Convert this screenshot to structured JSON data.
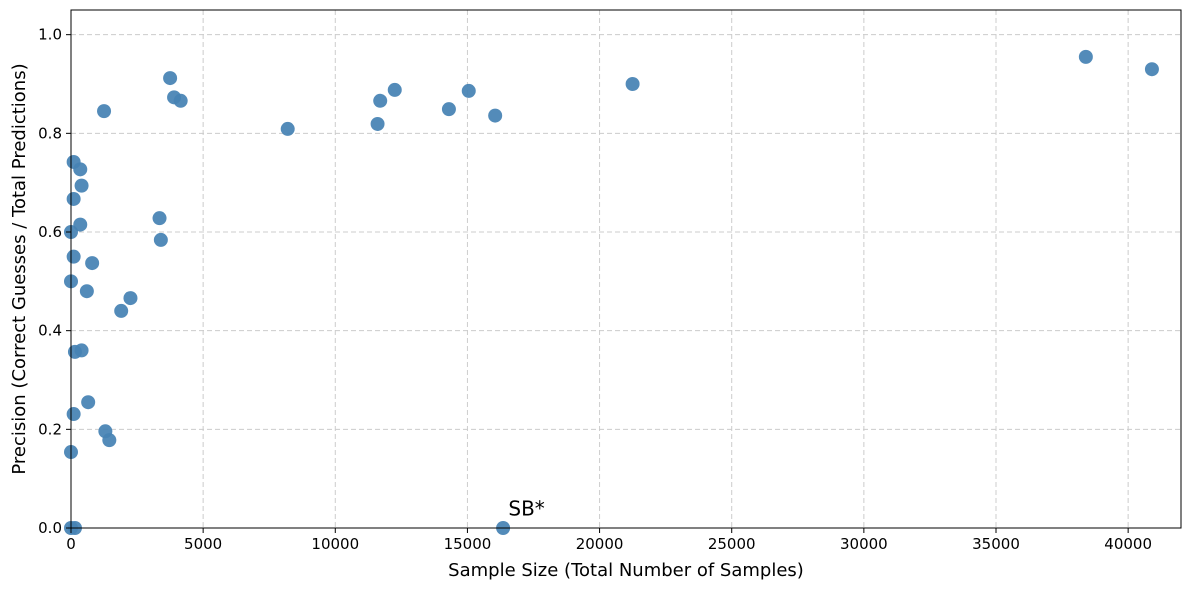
{
  "chart_data": {
    "type": "scatter",
    "title": "",
    "xlabel": "Sample Size (Total Number of Samples)",
    "ylabel": "Precision (Correct Guesses / Total Predictions)",
    "xlim": [
      0,
      42000
    ],
    "ylim": [
      0,
      1.05
    ],
    "xticks": [
      0,
      5000,
      10000,
      15000,
      20000,
      25000,
      30000,
      35000,
      40000
    ],
    "xtick_labels": [
      "0",
      "5000",
      "10000",
      "15000",
      "20000",
      "25000",
      "30000",
      "35000",
      "40000"
    ],
    "yticks": [
      0.0,
      0.2,
      0.4,
      0.6,
      0.8,
      1.0
    ],
    "ytick_labels": [
      "0.0",
      "0.2",
      "0.4",
      "0.6",
      "0.8",
      "1.0"
    ],
    "grid": true,
    "marker_color": "#4682b4",
    "points": [
      {
        "x": 38400,
        "y": 0.955
      },
      {
        "x": 40900,
        "y": 0.93
      },
      {
        "x": 21250,
        "y": 0.9
      },
      {
        "x": 3750,
        "y": 0.912
      },
      {
        "x": 3900,
        "y": 0.873
      },
      {
        "x": 4150,
        "y": 0.866
      },
      {
        "x": 1250,
        "y": 0.845
      },
      {
        "x": 8200,
        "y": 0.809
      },
      {
        "x": 11700,
        "y": 0.866
      },
      {
        "x": 12250,
        "y": 0.888
      },
      {
        "x": 11600,
        "y": 0.819
      },
      {
        "x": 14300,
        "y": 0.849
      },
      {
        "x": 15050,
        "y": 0.886
      },
      {
        "x": 16050,
        "y": 0.836
      },
      {
        "x": 100,
        "y": 0.742
      },
      {
        "x": 350,
        "y": 0.727
      },
      {
        "x": 400,
        "y": 0.694
      },
      {
        "x": 100,
        "y": 0.667
      },
      {
        "x": 350,
        "y": 0.615
      },
      {
        "x": 0,
        "y": 0.6
      },
      {
        "x": 3350,
        "y": 0.628
      },
      {
        "x": 3400,
        "y": 0.584
      },
      {
        "x": 100,
        "y": 0.55
      },
      {
        "x": 800,
        "y": 0.537
      },
      {
        "x": 0,
        "y": 0.5
      },
      {
        "x": 600,
        "y": 0.48
      },
      {
        "x": 2250,
        "y": 0.466
      },
      {
        "x": 1900,
        "y": 0.44
      },
      {
        "x": 150,
        "y": 0.357
      },
      {
        "x": 400,
        "y": 0.36
      },
      {
        "x": 650,
        "y": 0.255
      },
      {
        "x": 100,
        "y": 0.231
      },
      {
        "x": 1300,
        "y": 0.196
      },
      {
        "x": 1450,
        "y": 0.178
      },
      {
        "x": 0,
        "y": 0.154
      },
      {
        "x": 0,
        "y": 0.0
      },
      {
        "x": 150,
        "y": 0.0
      },
      {
        "x": 16350,
        "y": 0.0
      }
    ],
    "annotations": [
      {
        "text": "SB*",
        "x": 16550,
        "y": 0.025
      }
    ]
  }
}
